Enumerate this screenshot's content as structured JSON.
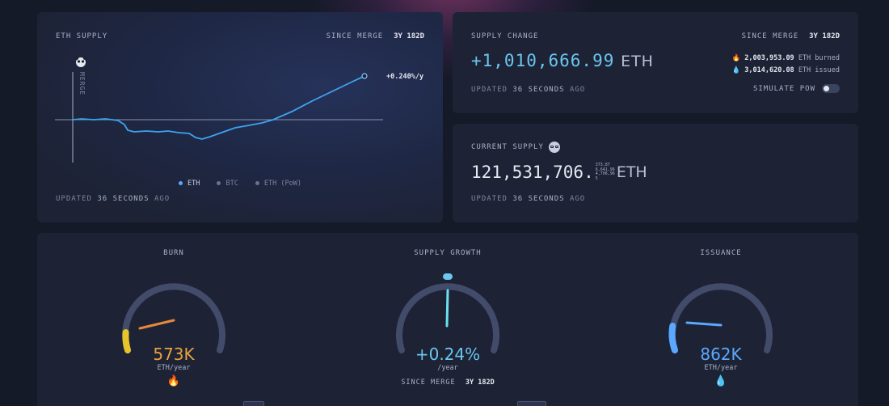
{
  "eth_supply": {
    "title": "ETH SUPPLY",
    "since_label": "SINCE MERGE",
    "since_value": "3y 182d",
    "merge_label": "MERGE",
    "rate_label": "+0.240%/y",
    "legend": [
      "ETH",
      "BTC",
      "ETH (PoW)"
    ],
    "legend_colors": [
      "#5aa8ff",
      "#6b7388",
      "#6b7388"
    ],
    "updated_prefix": "UPDATED",
    "updated_value": "36 SECONDS",
    "updated_suffix": "AGO"
  },
  "supply_change": {
    "title": "SUPPLY CHANGE",
    "since_label": "SINCE MERGE",
    "since_value": "3y 182d",
    "amount": "+1,010,666.99",
    "unit": "ETH",
    "burned_value": "2,003,953.09",
    "burned_label": "ETH burned",
    "issued_value": "3,014,620.08",
    "issued_label": "ETH issued",
    "updated_prefix": "UPDATED",
    "updated_value": "36 SECONDS",
    "updated_suffix": "AGO",
    "simulate_label": "SIMULATE PoW"
  },
  "current_supply": {
    "title": "CURRENT SUPPLY",
    "amount": "121,531,706.",
    "decimals_lines": [
      "373,87",
      "6,641,96",
      "4,706,96",
      "5"
    ],
    "unit": "ETH",
    "updated_prefix": "UPDATED",
    "updated_value": "36 SECONDS",
    "updated_suffix": "AGO"
  },
  "gauges": {
    "burn": {
      "title": "BURN",
      "value": "573K",
      "unit": "ETH/year",
      "icon": "fire-icon",
      "color": "#e8a23b",
      "level": 0.12
    },
    "growth": {
      "title": "SUPPLY GROWTH",
      "value": "+0.24%",
      "unit": "/year",
      "since_label": "SINCE MERGE",
      "since_value": "3y 182d",
      "color": "#6bc6f0",
      "level": 0.5
    },
    "issuance": {
      "title": "ISSUANCE",
      "value": "862K",
      "unit": "ETH/year",
      "icon": "droplet-icon",
      "color": "#5aa8ff",
      "level": 0.18
    }
  }
}
